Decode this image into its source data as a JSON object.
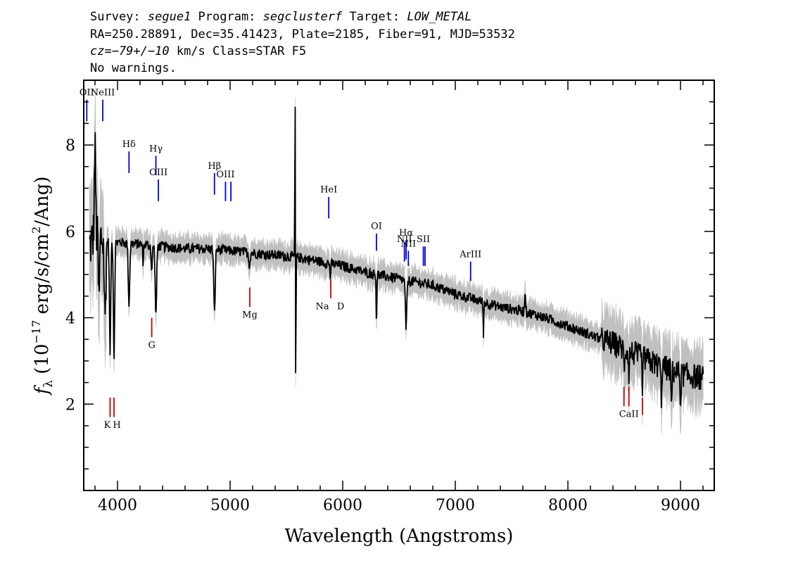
{
  "header": {
    "line1": [
      {
        "text": "Survey: ",
        "italic": false
      },
      {
        "text": "segue1",
        "italic": true
      },
      {
        "text": " Program: ",
        "italic": false
      },
      {
        "text": "segclusterf",
        "italic": true
      },
      {
        "text": " Target: ",
        "italic": false
      },
      {
        "text": "LOW_METAL",
        "italic": true
      }
    ],
    "line2": "RA=250.28891, Dec=35.41423, Plate=2185, Fiber=91, MJD=53532",
    "line3": [
      {
        "text": "cz=−79+/−10",
        "italic": true
      },
      {
        "text": " km/s Class=STAR F5",
        "italic": false
      }
    ],
    "line4": "No warnings."
  },
  "colors": {
    "spectrum": "#000000",
    "error_band": "#c0c0c0",
    "emission_line": "#0000dd",
    "absorption_line": "#cc0000"
  },
  "chart_data": {
    "type": "line",
    "xlabel": "Wavelength (Angstroms)",
    "ylabel_parts": {
      "f": "f",
      "sub": "λ",
      "pre": " (10",
      "exp1": "−17",
      "mid": " erg/s/cm",
      "exp2": "2",
      "post": "/Ang)"
    },
    "xlim": [
      3700,
      9300
    ],
    "ylim": [
      0,
      9.5
    ],
    "x_ticks": [
      4000,
      5000,
      6000,
      7000,
      8000,
      9000
    ],
    "x_tick_labels": [
      "4000",
      "5000",
      "6000",
      "7000",
      "8000",
      "9000"
    ],
    "x_minor_step": 200,
    "y_ticks": [
      2,
      4,
      6,
      8
    ],
    "y_tick_labels": [
      "2",
      "4",
      "6",
      "8"
    ],
    "y_minor_step": 0.5,
    "continuum": {
      "x": [
        3740,
        3800,
        3900,
        4000,
        4200,
        4400,
        4600,
        4800,
        5000,
        5200,
        5400,
        5600,
        5800,
        6000,
        6200,
        6400,
        6600,
        6800,
        7000,
        7200,
        7400,
        7600,
        7800,
        8000,
        8200,
        8400,
        8600,
        8800,
        9000,
        9200
      ],
      "y": [
        5.6,
        5.9,
        5.8,
        5.75,
        5.7,
        5.65,
        5.6,
        5.6,
        5.55,
        5.5,
        5.45,
        5.4,
        5.3,
        5.2,
        5.05,
        4.95,
        4.85,
        4.75,
        4.55,
        4.4,
        4.25,
        4.15,
        4.0,
        3.8,
        3.6,
        3.4,
        3.15,
        2.9,
        2.7,
        2.6
      ]
    },
    "spectrum_features": [
      {
        "x": 3800,
        "depth": -2.0,
        "width": 8
      },
      {
        "x": 3835,
        "depth": 1.5,
        "width": 8
      },
      {
        "x": 3889,
        "depth": 1.8,
        "width": 10
      },
      {
        "x": 3934,
        "depth": 2.6,
        "width": 8
      },
      {
        "x": 3969,
        "depth": 2.7,
        "width": 8
      },
      {
        "x": 4102,
        "depth": 1.4,
        "width": 9
      },
      {
        "x": 4227,
        "depth": 0.4,
        "width": 5
      },
      {
        "x": 4304,
        "depth": 0.6,
        "width": 7
      },
      {
        "x": 4341,
        "depth": 1.6,
        "width": 9
      },
      {
        "x": 4861,
        "depth": 1.5,
        "width": 9
      },
      {
        "x": 5172,
        "depth": 0.3,
        "width": 8
      },
      {
        "x": 5577,
        "depth": -4.0,
        "width": 3
      },
      {
        "x": 5583,
        "depth": 3.3,
        "width": 3
      },
      {
        "x": 5890,
        "depth": 0.3,
        "width": 6
      },
      {
        "x": 6300,
        "depth": 1.2,
        "width": 4
      },
      {
        "x": 6563,
        "depth": 1.1,
        "width": 9
      },
      {
        "x": 7250,
        "depth": 0.8,
        "width": 4
      },
      {
        "x": 7620,
        "depth": -0.5,
        "width": 6
      },
      {
        "x": 8500,
        "depth": 0.4,
        "width": 6
      },
      {
        "x": 8542,
        "depth": 0.5,
        "width": 6
      },
      {
        "x": 8662,
        "depth": 0.6,
        "width": 6
      },
      {
        "x": 8830,
        "depth": 0.7,
        "width": 6
      },
      {
        "x": 8920,
        "depth": 0.8,
        "width": 6
      },
      {
        "x": 9000,
        "depth": 0.6,
        "width": 6
      }
    ],
    "emission_lines": [
      {
        "label": "OII",
        "x": 3727,
        "top": 9.05,
        "bottom": 8.55,
        "label_y": 9.15
      },
      {
        "label": "NeIII",
        "x": 3869,
        "top": 9.05,
        "bottom": 8.55,
        "label_y": 9.15
      },
      {
        "label": "Hδ",
        "x": 4102,
        "top": 7.85,
        "bottom": 7.35,
        "label_y": 7.95
      },
      {
        "label": "Hγ",
        "x": 4341,
        "top": 7.75,
        "bottom": 7.3,
        "label_y": 7.85
      },
      {
        "label": "OIII",
        "x": 4363,
        "top": 7.2,
        "bottom": 6.7,
        "label_y": 7.3
      },
      {
        "label": "Hβ",
        "x": 4861,
        "top": 7.35,
        "bottom": 6.85,
        "label_y": 7.45
      },
      {
        "label": "OIII",
        "x": 4959,
        "top": 7.15,
        "bottom": 6.7,
        "label_y": 7.25
      },
      {
        "label": "",
        "x": 5007,
        "top": 7.15,
        "bottom": 6.7,
        "label_y": 7.25
      },
      {
        "label": "HeI",
        "x": 5876,
        "top": 6.8,
        "bottom": 6.3,
        "label_y": 6.9
      },
      {
        "label": "OI",
        "x": 6300,
        "top": 5.95,
        "bottom": 5.55,
        "label_y": 6.05
      },
      {
        "label": "NII",
        "x": 6548,
        "top": 5.75,
        "bottom": 5.3,
        "label_y": 5.75
      },
      {
        "label": "Hα",
        "x": 6563,
        "top": 5.8,
        "bottom": 5.35,
        "label_y": 5.9
      },
      {
        "label": "NII",
        "x": 6583,
        "top": 5.55,
        "bottom": 5.2,
        "label_y": 5.65
      },
      {
        "label": "SII",
        "x": 6716,
        "top": 5.65,
        "bottom": 5.2,
        "label_y": 5.75
      },
      {
        "label": "",
        "x": 6731,
        "top": 5.65,
        "bottom": 5.2,
        "label_y": 5.75
      },
      {
        "label": "ArIII",
        "x": 7136,
        "top": 5.3,
        "bottom": 4.85,
        "label_y": 5.4
      }
    ],
    "absorption_lines": [
      {
        "label": "K",
        "x": 3934,
        "top": 2.15,
        "bottom": 1.7,
        "label_y": 1.45,
        "label_dx": -4
      },
      {
        "label": "H",
        "x": 3969,
        "top": 2.15,
        "bottom": 1.7,
        "label_y": 1.45,
        "label_dx": 4
      },
      {
        "label": "G",
        "x": 4304,
        "top": 4.0,
        "bottom": 3.55,
        "label_y": 3.3,
        "label_dx": 0
      },
      {
        "label": "Mg",
        "x": 5175,
        "top": 4.7,
        "bottom": 4.25,
        "label_y": 4.0,
        "label_dx": 0
      },
      {
        "label": "Na",
        "x": 5894,
        "top": 4.9,
        "bottom": 4.45,
        "label_y": 4.2,
        "label_dx": -12
      },
      {
        "label": "D",
        "x": 5894,
        "top": 4.9,
        "bottom": 4.45,
        "label_y": 4.2,
        "label_dx": 14
      },
      {
        "label": "",
        "x": 8498,
        "top": 2.4,
        "bottom": 1.95,
        "label_y": 1.7,
        "label_dx": 0
      },
      {
        "label": "CaII",
        "x": 8542,
        "top": 2.4,
        "bottom": 1.95,
        "label_y": 1.7,
        "label_dx": 0
      },
      {
        "label": "",
        "x": 8662,
        "top": 2.15,
        "bottom": 1.75,
        "label_y": 1.7,
        "label_dx": 0
      }
    ]
  }
}
